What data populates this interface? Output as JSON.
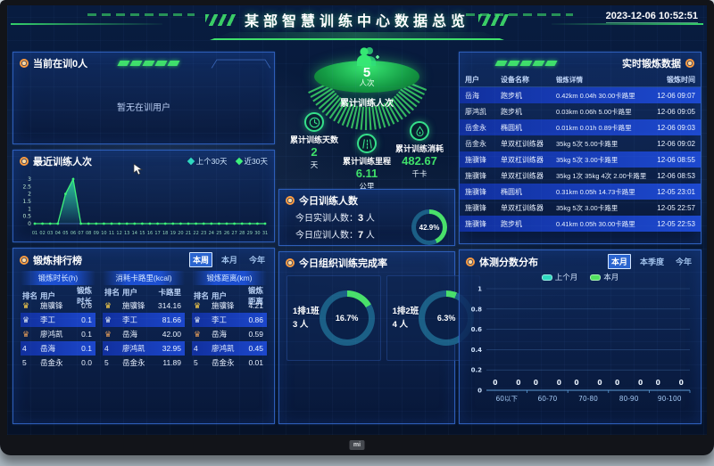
{
  "colors": {
    "accent_green": "#3fe06a",
    "teal": "#2fd9c0",
    "ring_rest": "#1b5f86",
    "arc_green": "#49e06a",
    "bright_row": "#1d49cf",
    "medal_colors": [
      "#ffd24a",
      "#d7e2ef",
      "#e09a5a"
    ]
  },
  "monitor": {
    "brand": "mi"
  },
  "header": {
    "title": "某部智慧训练中心数据总览",
    "timestamp": "2023-12-06 10:52:51"
  },
  "current_training": {
    "title": "当前在训0人",
    "empty_text": "暂无在训用户"
  },
  "ranking": {
    "title": "锻炼排行榜",
    "tabs": [
      "本周",
      "本月",
      "今年"
    ],
    "active_tab": "本周",
    "medal_glyph": "♛",
    "boards": [
      {
        "title": "锻炼时长(h)",
        "columns": [
          "排名",
          "用户",
          "锻炼时长"
        ],
        "rows": [
          [
            "1",
            "施骥锋",
            "0.6"
          ],
          [
            "2",
            "李工",
            "0.1"
          ],
          [
            "3",
            "廖鸿凯",
            "0.1"
          ],
          [
            "4",
            "岳海",
            "0.1"
          ],
          [
            "5",
            "岳金永",
            "0.0"
          ]
        ]
      },
      {
        "title": "消耗卡路里(kcal)",
        "columns": [
          "排名",
          "用户",
          "卡路里"
        ],
        "rows": [
          [
            "1",
            "施骥锋",
            "314.16"
          ],
          [
            "2",
            "李工",
            "81.66"
          ],
          [
            "3",
            "岳海",
            "42.00"
          ],
          [
            "4",
            "廖鸿凯",
            "32.95"
          ],
          [
            "5",
            "岳金永",
            "11.89"
          ]
        ]
      },
      {
        "title": "锻炼距离(km)",
        "columns": [
          "排名",
          "用户",
          "锻炼距离"
        ],
        "rows": [
          [
            "1",
            "施骥锋",
            "4.21"
          ],
          [
            "2",
            "李工",
            "0.86"
          ],
          [
            "3",
            "岳海",
            "0.59"
          ],
          [
            "4",
            "廖鸿凯",
            "0.45"
          ],
          [
            "5",
            "岳金永",
            "0.01"
          ]
        ]
      }
    ]
  },
  "summary": {
    "people": {
      "value": "5",
      "unit": "人次",
      "label": "累计训练人次"
    },
    "stats": [
      {
        "icon": "clock-icon",
        "label": "累计训练天数",
        "value": "2",
        "unit": "天"
      },
      {
        "icon": "road-icon",
        "label": "累计训练里程",
        "value": "6.11",
        "unit": "公里"
      },
      {
        "icon": "flame-icon",
        "label": "累计训练消耗",
        "value": "482.67",
        "unit": "千卡"
      }
    ]
  },
  "today": {
    "title": "今日训练人数",
    "rows": [
      {
        "label": "今日实训人数：",
        "value": "3",
        "unit": "人"
      },
      {
        "label": "今日应训人数：",
        "value": "7",
        "unit": "人"
      }
    ],
    "percent_label": "42.9%",
    "percent_value": 42.9
  },
  "completion": {
    "title": "今日组织训练完成率",
    "cards": [
      {
        "group": "1排1班",
        "count": "3 人",
        "percent_label": "16.7%",
        "percent_value": 16.7
      },
      {
        "group": "1排2班",
        "count": "4 人",
        "percent_label": "6.3%",
        "percent_value": 6.3
      }
    ]
  },
  "realtime": {
    "title": "实时锻炼数据",
    "columns": [
      "用户",
      "设备名称",
      "锻炼详情",
      "锻炼时间"
    ],
    "rows": [
      [
        "岳海",
        "跑步机",
        "0.42km 0.04h 30.00卡路里",
        "12-06 09:07"
      ],
      [
        "廖鸿凯",
        "跑步机",
        "0.03km 0.06h 5.00卡路里",
        "12-06 09:05"
      ],
      [
        "岳金永",
        "椭圆机",
        "0.01km 0.01h 0.89卡路里",
        "12-06 09:03"
      ],
      [
        "岳金永",
        "单双杠训练器",
        "35kg 5次 5.00卡路里",
        "12-06 09:02"
      ],
      [
        "施骥锋",
        "单双杠训练器",
        "35kg 5次 3.00卡路里",
        "12-06 08:55"
      ],
      [
        "施骥锋",
        "单双杠训练器",
        "35kg 1次 35kg 4次 2.00卡路里",
        "12-06 08:53"
      ],
      [
        "施骥锋",
        "椭圆机",
        "0.31km 0.05h 14.73卡路里",
        "12-05 23:01"
      ],
      [
        "施骥锋",
        "单双杠训练器",
        "35kg 5次 3.00卡路里",
        "12-05 22:57"
      ],
      [
        "施骥锋",
        "跑步机",
        "0.41km 0.05h 30.00卡路里",
        "12-05 22:53"
      ]
    ]
  },
  "chart_data": [
    {
      "id": "recent_training",
      "type": "area",
      "title": "最近训练人次",
      "x": [
        "01",
        "02",
        "03",
        "04",
        "05",
        "06",
        "07",
        "08",
        "09",
        "10",
        "11",
        "12",
        "13",
        "14",
        "15",
        "16",
        "17",
        "18",
        "19",
        "20",
        "21",
        "22",
        "23",
        "24",
        "25",
        "26",
        "27",
        "28",
        "29",
        "30",
        "31"
      ],
      "series": [
        {
          "name": "上个30天",
          "color": "#2fd9c0",
          "values": [
            0,
            0,
            0,
            0,
            0,
            0,
            0,
            0,
            0,
            0,
            0,
            0,
            0,
            0,
            0,
            0,
            0,
            0,
            0,
            0,
            0,
            0,
            0,
            0,
            0,
            0,
            0,
            0,
            0,
            0,
            0
          ]
        },
        {
          "name": "近30天",
          "color": "#3ef27a",
          "values": [
            0,
            0,
            0,
            0,
            2,
            3,
            0,
            0,
            0,
            0,
            0,
            0,
            0,
            0,
            0,
            0,
            0,
            0,
            0,
            0,
            0,
            0,
            0,
            0,
            0,
            0,
            0,
            0,
            0,
            0,
            0
          ]
        }
      ],
      "ylim": [
        0,
        3
      ],
      "yticks": [
        0,
        0.5,
        1,
        1.5,
        2,
        2.5,
        3
      ],
      "grid": false,
      "legend_position": "top-right"
    },
    {
      "id": "score_distribution",
      "type": "line",
      "title": "体测分数分布",
      "categories": [
        "60以下",
        "60-70",
        "70-80",
        "80-90",
        "90-100"
      ],
      "series": [
        {
          "name": "上个月",
          "color": "#2fd9c0",
          "values": [
            0,
            0,
            0,
            0,
            0
          ]
        },
        {
          "name": "本月",
          "color": "#52e060",
          "values": [
            0,
            0,
            0,
            0,
            0
          ]
        }
      ],
      "ylim": [
        0,
        1
      ],
      "yticks": [
        0,
        0.2,
        0.4,
        0.6,
        0.8,
        1
      ],
      "grid": true,
      "legend_position": "top-center",
      "tabs": [
        "本月",
        "本季度",
        "今年"
      ],
      "active_tab": "本月"
    }
  ]
}
